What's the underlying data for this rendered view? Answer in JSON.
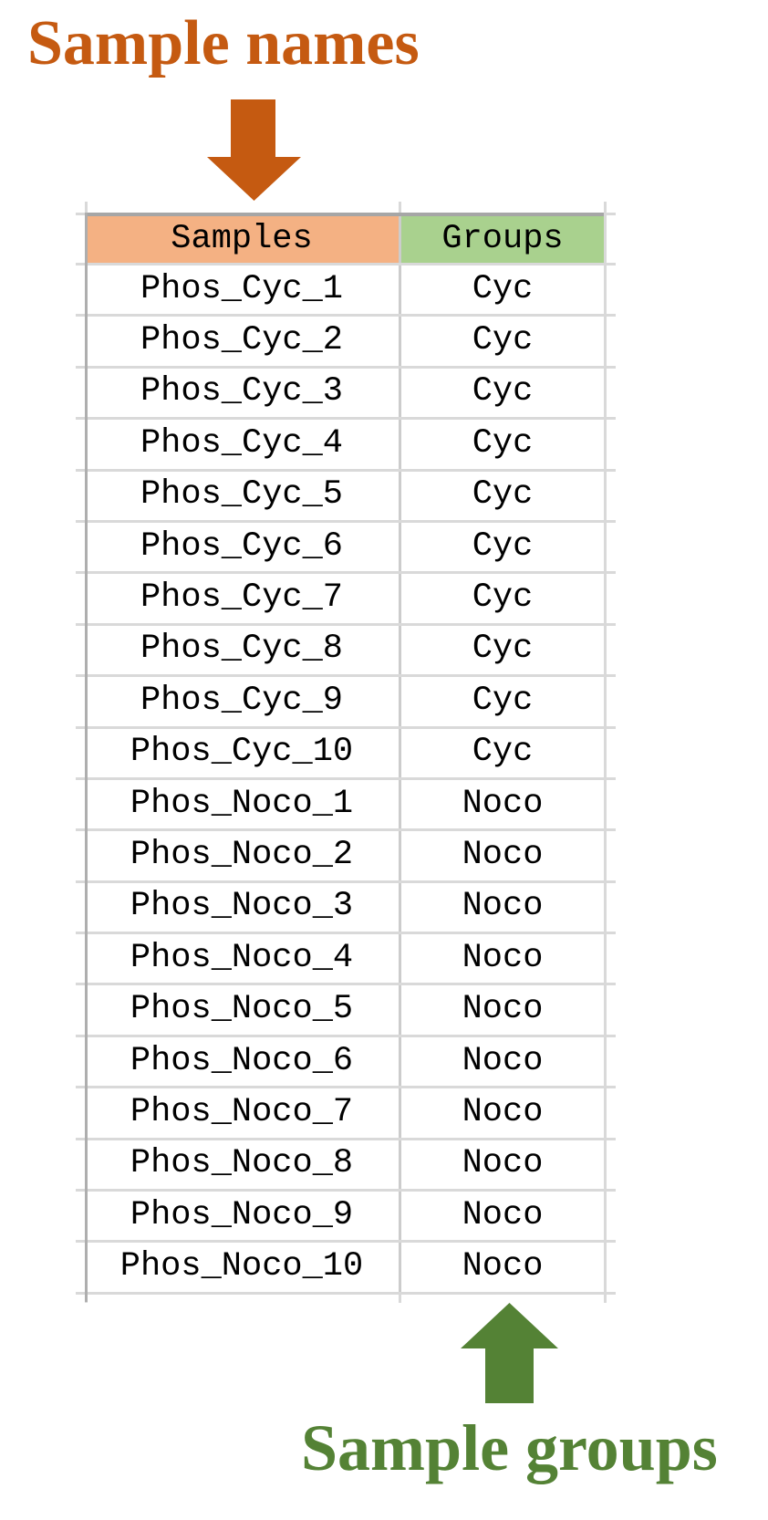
{
  "annotations": {
    "top": {
      "text": "Sample names",
      "color": "#C55A11",
      "arrow_color": "#C55A11",
      "arrow_direction": "down"
    },
    "bottom": {
      "text": "Sample groups",
      "color": "#548235",
      "arrow_color": "#548235",
      "arrow_direction": "up"
    }
  },
  "table": {
    "columns": [
      {
        "label": "Samples",
        "fill": "#F4B183"
      },
      {
        "label": "Groups",
        "fill": "#A9D18E"
      }
    ],
    "rows": [
      {
        "sample": "Phos_Cyc_1",
        "group": "Cyc"
      },
      {
        "sample": "Phos_Cyc_2",
        "group": "Cyc"
      },
      {
        "sample": "Phos_Cyc_3",
        "group": "Cyc"
      },
      {
        "sample": "Phos_Cyc_4",
        "group": "Cyc"
      },
      {
        "sample": "Phos_Cyc_5",
        "group": "Cyc"
      },
      {
        "sample": "Phos_Cyc_6",
        "group": "Cyc"
      },
      {
        "sample": "Phos_Cyc_7",
        "group": "Cyc"
      },
      {
        "sample": "Phos_Cyc_8",
        "group": "Cyc"
      },
      {
        "sample": "Phos_Cyc_9",
        "group": "Cyc"
      },
      {
        "sample": "Phos_Cyc_10",
        "group": "Cyc"
      },
      {
        "sample": "Phos_Noco_1",
        "group": "Noco"
      },
      {
        "sample": "Phos_Noco_2",
        "group": "Noco"
      },
      {
        "sample": "Phos_Noco_3",
        "group": "Noco"
      },
      {
        "sample": "Phos_Noco_4",
        "group": "Noco"
      },
      {
        "sample": "Phos_Noco_5",
        "group": "Noco"
      },
      {
        "sample": "Phos_Noco_6",
        "group": "Noco"
      },
      {
        "sample": "Phos_Noco_7",
        "group": "Noco"
      },
      {
        "sample": "Phos_Noco_8",
        "group": "Noco"
      },
      {
        "sample": "Phos_Noco_9",
        "group": "Noco"
      },
      {
        "sample": "Phos_Noco_10",
        "group": "Noco"
      }
    ]
  }
}
